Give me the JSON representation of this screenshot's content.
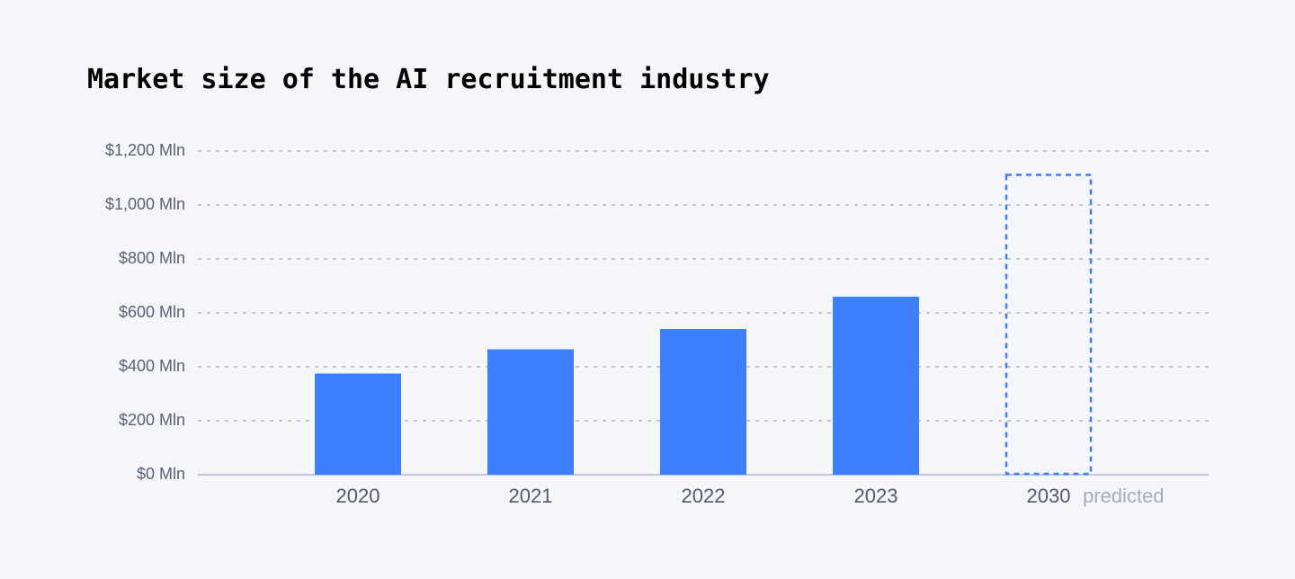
{
  "chart_data": {
    "type": "bar",
    "title": "Market size of the AI recruitment industry",
    "categories": [
      "2020",
      "2021",
      "2022",
      "2023",
      "2030"
    ],
    "values": [
      375,
      465,
      540,
      660,
      1115
    ],
    "bar_styles": [
      "solid",
      "solid",
      "solid",
      "solid",
      "dashed"
    ],
    "category_notes": [
      null,
      null,
      null,
      null,
      "predicted"
    ],
    "color": "#3d7fff",
    "ylim": [
      0,
      1200
    ],
    "yticks": [
      {
        "value": 0,
        "label": "$0 Mln"
      },
      {
        "value": 200,
        "label": "$200 Mln"
      },
      {
        "value": 400,
        "label": "$400 Mln"
      },
      {
        "value": 600,
        "label": "$600 Mln"
      },
      {
        "value": 800,
        "label": "$800 Mln"
      },
      {
        "value": 1000,
        "label": "$1,000 Mln"
      },
      {
        "value": 1200,
        "label": "$1,200 Mln"
      }
    ],
    "grid": true
  }
}
